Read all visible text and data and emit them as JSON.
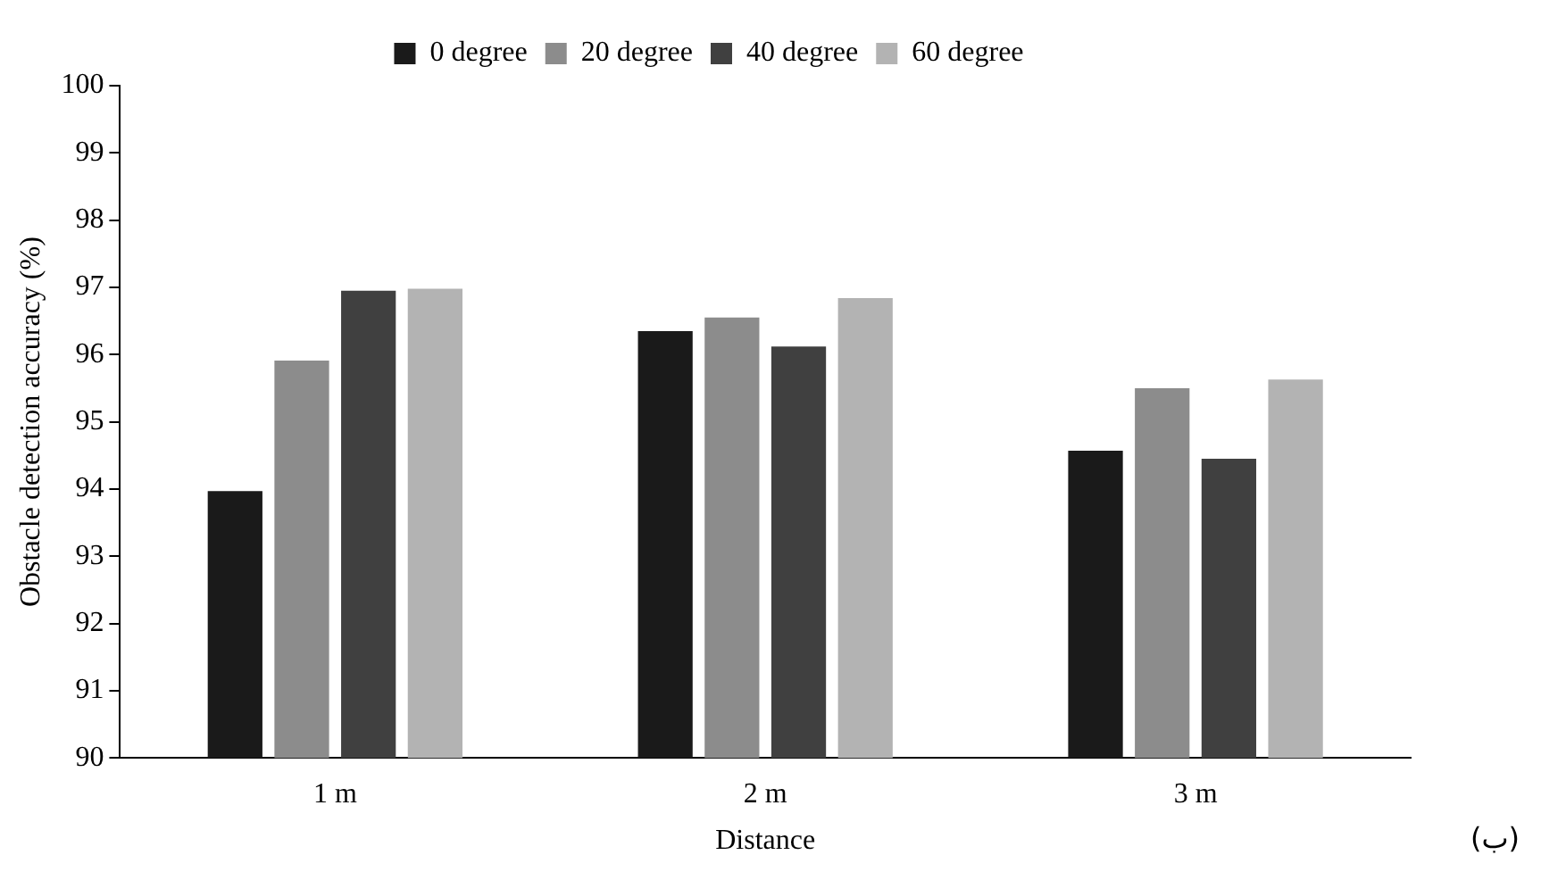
{
  "chart_data": {
    "type": "bar",
    "xlabel": "Distance",
    "ylabel": "Obstacle detection accuracy (%)",
    "categories": [
      "1 m",
      "2 m",
      "3 m"
    ],
    "series": [
      {
        "name": "0 degree",
        "color": "#1a1a1a",
        "values": [
          93.97,
          96.35,
          94.57
        ]
      },
      {
        "name": "20 degree",
        "color": "#8c8c8c",
        "values": [
          95.91,
          96.55,
          95.5
        ]
      },
      {
        "name": "40 degree",
        "color": "#404040",
        "values": [
          96.95,
          96.12,
          94.45
        ]
      },
      {
        "name": "60 degree",
        "color": "#b3b3b3",
        "values": [
          96.98,
          96.84,
          95.63
        ]
      }
    ],
    "ylim": [
      90,
      100
    ],
    "yticks": [
      90,
      91,
      92,
      93,
      94,
      95,
      96,
      97,
      98,
      99,
      100
    ],
    "grid": false,
    "legend": "top",
    "annotations": [
      "(ب)"
    ]
  }
}
